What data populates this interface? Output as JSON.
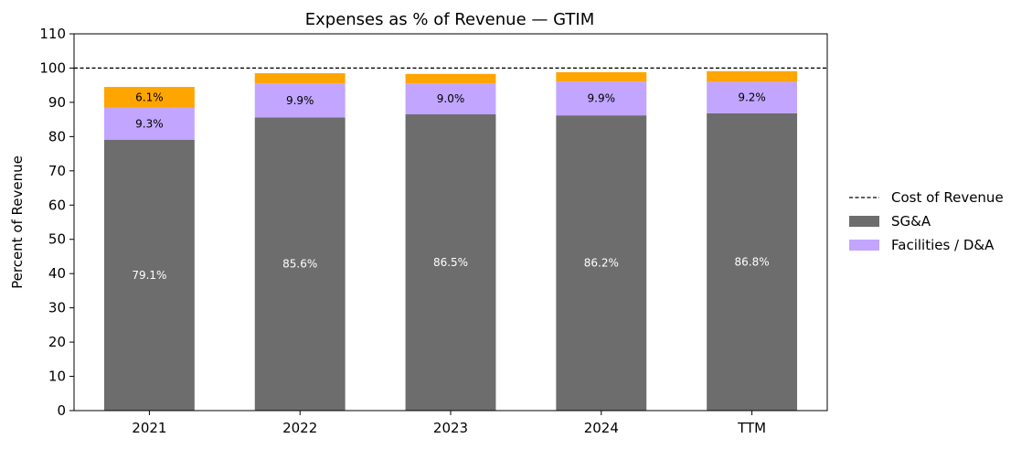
{
  "chart_data": {
    "type": "bar",
    "stacked": true,
    "title": "Expenses as % of Revenue — GTIM",
    "xlabel": "",
    "ylabel": "Percent of Revenue",
    "ylim": [
      0,
      110
    ],
    "yticks": [
      0,
      10,
      20,
      30,
      40,
      50,
      60,
      70,
      80,
      90,
      100,
      110
    ],
    "grid": false,
    "legend_position": "right",
    "categories": [
      "2021",
      "2022",
      "2023",
      "2024",
      "TTM"
    ],
    "series": [
      {
        "name": "SG&A",
        "color": "#6d6d6d",
        "label_color": "#ffffff",
        "values": [
          79.1,
          85.6,
          86.5,
          86.2,
          86.8
        ],
        "labels": [
          "79.1%",
          "85.6%",
          "86.5%",
          "86.2%",
          "86.8%"
        ],
        "in_legend": true
      },
      {
        "name": "Facilities / D&A",
        "color": "#c2a5ff",
        "label_color": "#000000",
        "values": [
          9.3,
          9.9,
          9.0,
          9.9,
          9.2
        ],
        "labels": [
          "9.3%",
          "9.9%",
          "9.0%",
          "9.9%",
          "9.2%"
        ],
        "in_legend": true
      },
      {
        "name": "",
        "color": "#ffa500",
        "label_color": "#000000",
        "values": [
          6.1,
          3.0,
          2.8,
          2.7,
          3.1
        ],
        "labels": [
          "6.1%",
          "",
          "",
          "",
          ""
        ],
        "in_legend": false
      }
    ],
    "reference_line": {
      "name": "Cost of Revenue",
      "value": 100,
      "style": "dashed",
      "color": "#000000"
    }
  }
}
